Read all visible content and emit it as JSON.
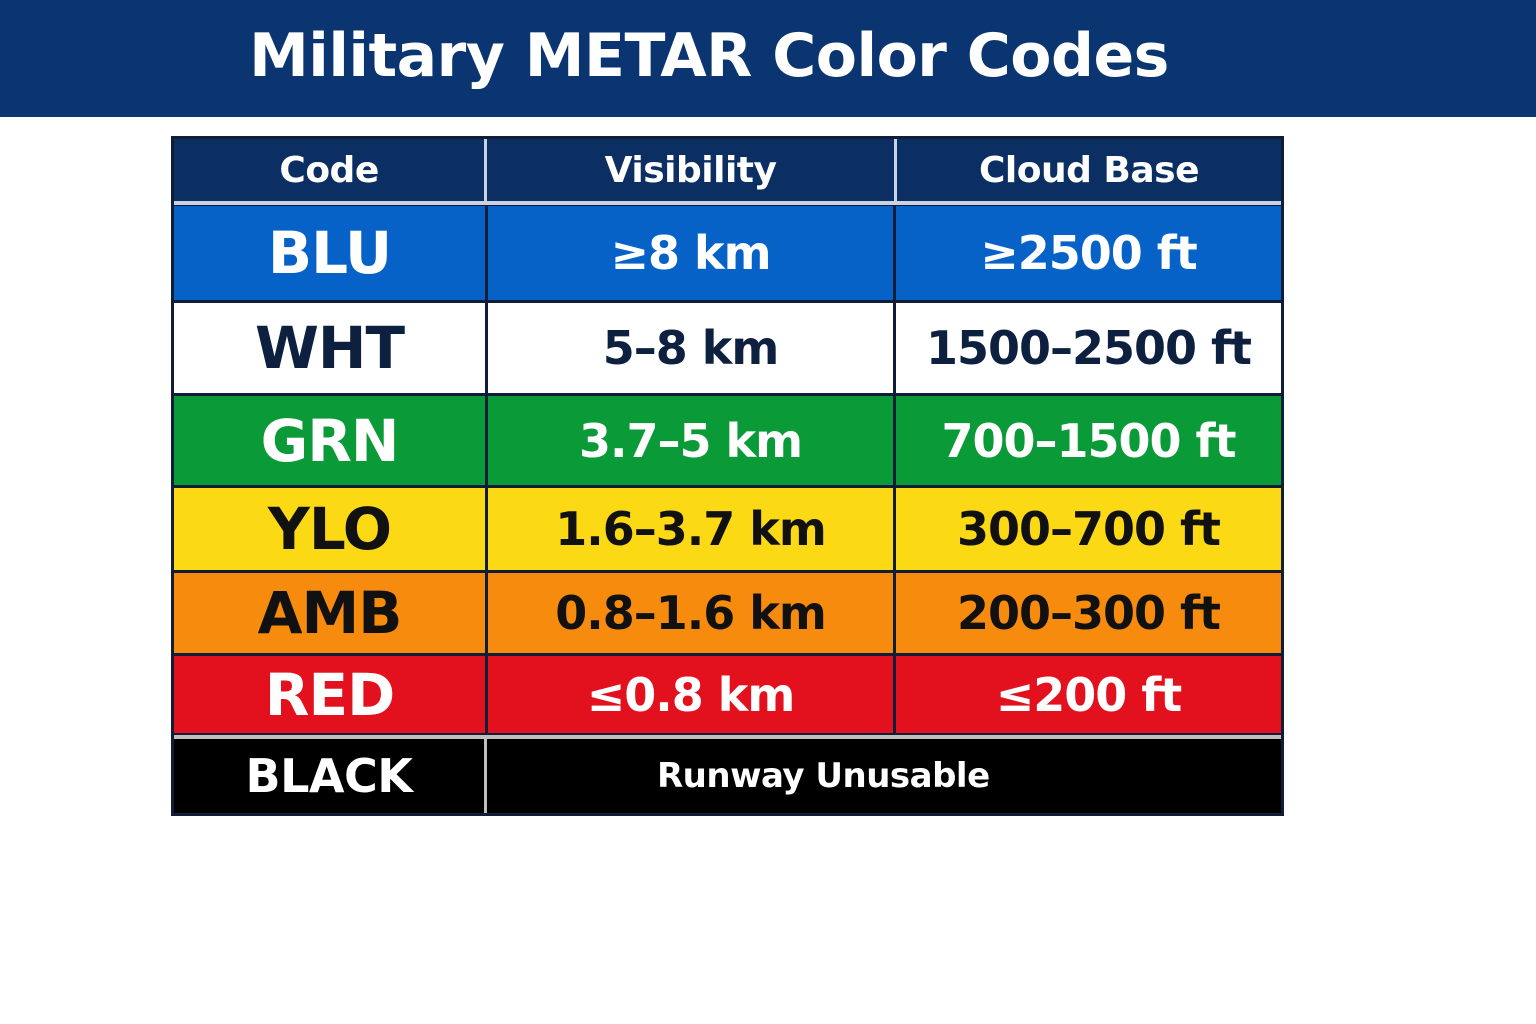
{
  "title": "Military METAR Color Codes",
  "table": {
    "headers": {
      "code": "Code",
      "visibility": "Visibility",
      "cloud_base": "Cloud Base"
    },
    "rows": [
      {
        "code": "BLU",
        "visibility": "≥8 km",
        "cloud_base": "≥2500 ft",
        "bg": "#0762c8",
        "fg": "#ffffff"
      },
      {
        "code": "WHT",
        "visibility": "5–8 km",
        "cloud_base": "1500–2500 ft",
        "bg": "#ffffff",
        "fg": "#0d2040"
      },
      {
        "code": "GRN",
        "visibility": "3.7–5 km",
        "cloud_base": "700–1500 ft",
        "bg": "#0b9a38",
        "fg": "#ffffff"
      },
      {
        "code": "YLO",
        "visibility": "1.6–3.7 km",
        "cloud_base": "300–700 ft",
        "bg": "#fbd915",
        "fg": "#111111"
      },
      {
        "code": "AMB",
        "visibility": "0.8–1.6 km",
        "cloud_base": "200–300 ft",
        "bg": "#f68b0d",
        "fg": "#111111"
      },
      {
        "code": "RED",
        "visibility": "≤0.8 km",
        "cloud_base": "≤200 ft",
        "bg": "#e3101d",
        "fg": "#ffffff"
      }
    ],
    "black_row": {
      "code": "BLACK",
      "description": "Runway Unusable",
      "bg": "#000000",
      "fg": "#ffffff"
    }
  },
  "colors": {
    "title_bar": "#0b3570",
    "header_bg": "#0b2e63"
  }
}
